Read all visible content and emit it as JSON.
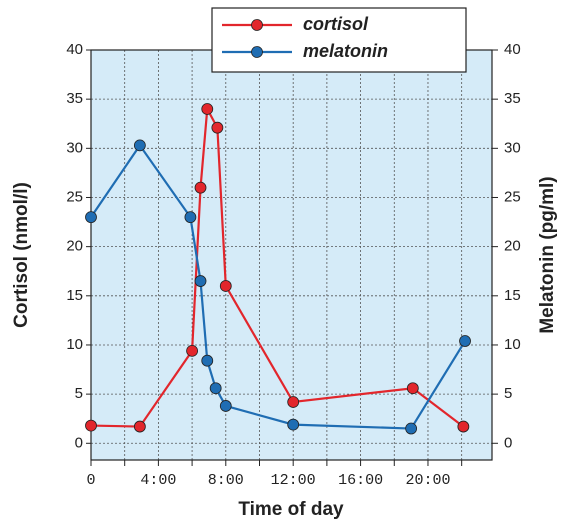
{
  "chart_data": {
    "type": "line",
    "x_label": "Time of day",
    "y_label": "Cortisol  (nmol/l)",
    "y2_label": "Melatonin  (pg/ml)",
    "xlim": [
      0,
      23.8
    ],
    "xticks": [
      {
        "value": 0,
        "label": "0"
      },
      {
        "value": 4,
        "label": "4:00"
      },
      {
        "value": 8,
        "label": "8:00"
      },
      {
        "value": 12,
        "label": "12:00"
      },
      {
        "value": 16,
        "label": "16:00"
      },
      {
        "value": 20,
        "label": "20:00"
      }
    ],
    "x_minor_grid": [
      2,
      6,
      10,
      14,
      18,
      22
    ],
    "ylim": [
      -1.7,
      40
    ],
    "yticks": [
      0,
      5,
      10,
      15,
      20,
      25,
      30,
      35,
      40
    ],
    "y2lim": [
      -1.7,
      40
    ],
    "y2ticks": [
      0,
      5,
      10,
      15,
      20,
      25,
      30,
      35,
      40
    ],
    "grid": true,
    "background": "#d5ebf8",
    "legend": "top",
    "series": [
      {
        "name": "cortisol",
        "color": "#e2262c",
        "x": [
          0,
          2.9,
          6.0,
          6.5,
          6.9,
          7.5,
          8.0,
          12.0,
          19.1,
          22.1
        ],
        "values": [
          1.8,
          1.7,
          9.4,
          26,
          34,
          32.1,
          16,
          4.2,
          5.6,
          1.7
        ]
      },
      {
        "name": "melatonin",
        "color": "#1f6db3",
        "axis": "y2",
        "x": [
          0,
          2.9,
          5.9,
          6.5,
          6.9,
          7.4,
          8.0,
          12.0,
          19.0,
          22.2
        ],
        "values": [
          23,
          30.3,
          23,
          16.5,
          8.4,
          5.6,
          3.8,
          1.9,
          1.5,
          10.4
        ]
      }
    ]
  }
}
